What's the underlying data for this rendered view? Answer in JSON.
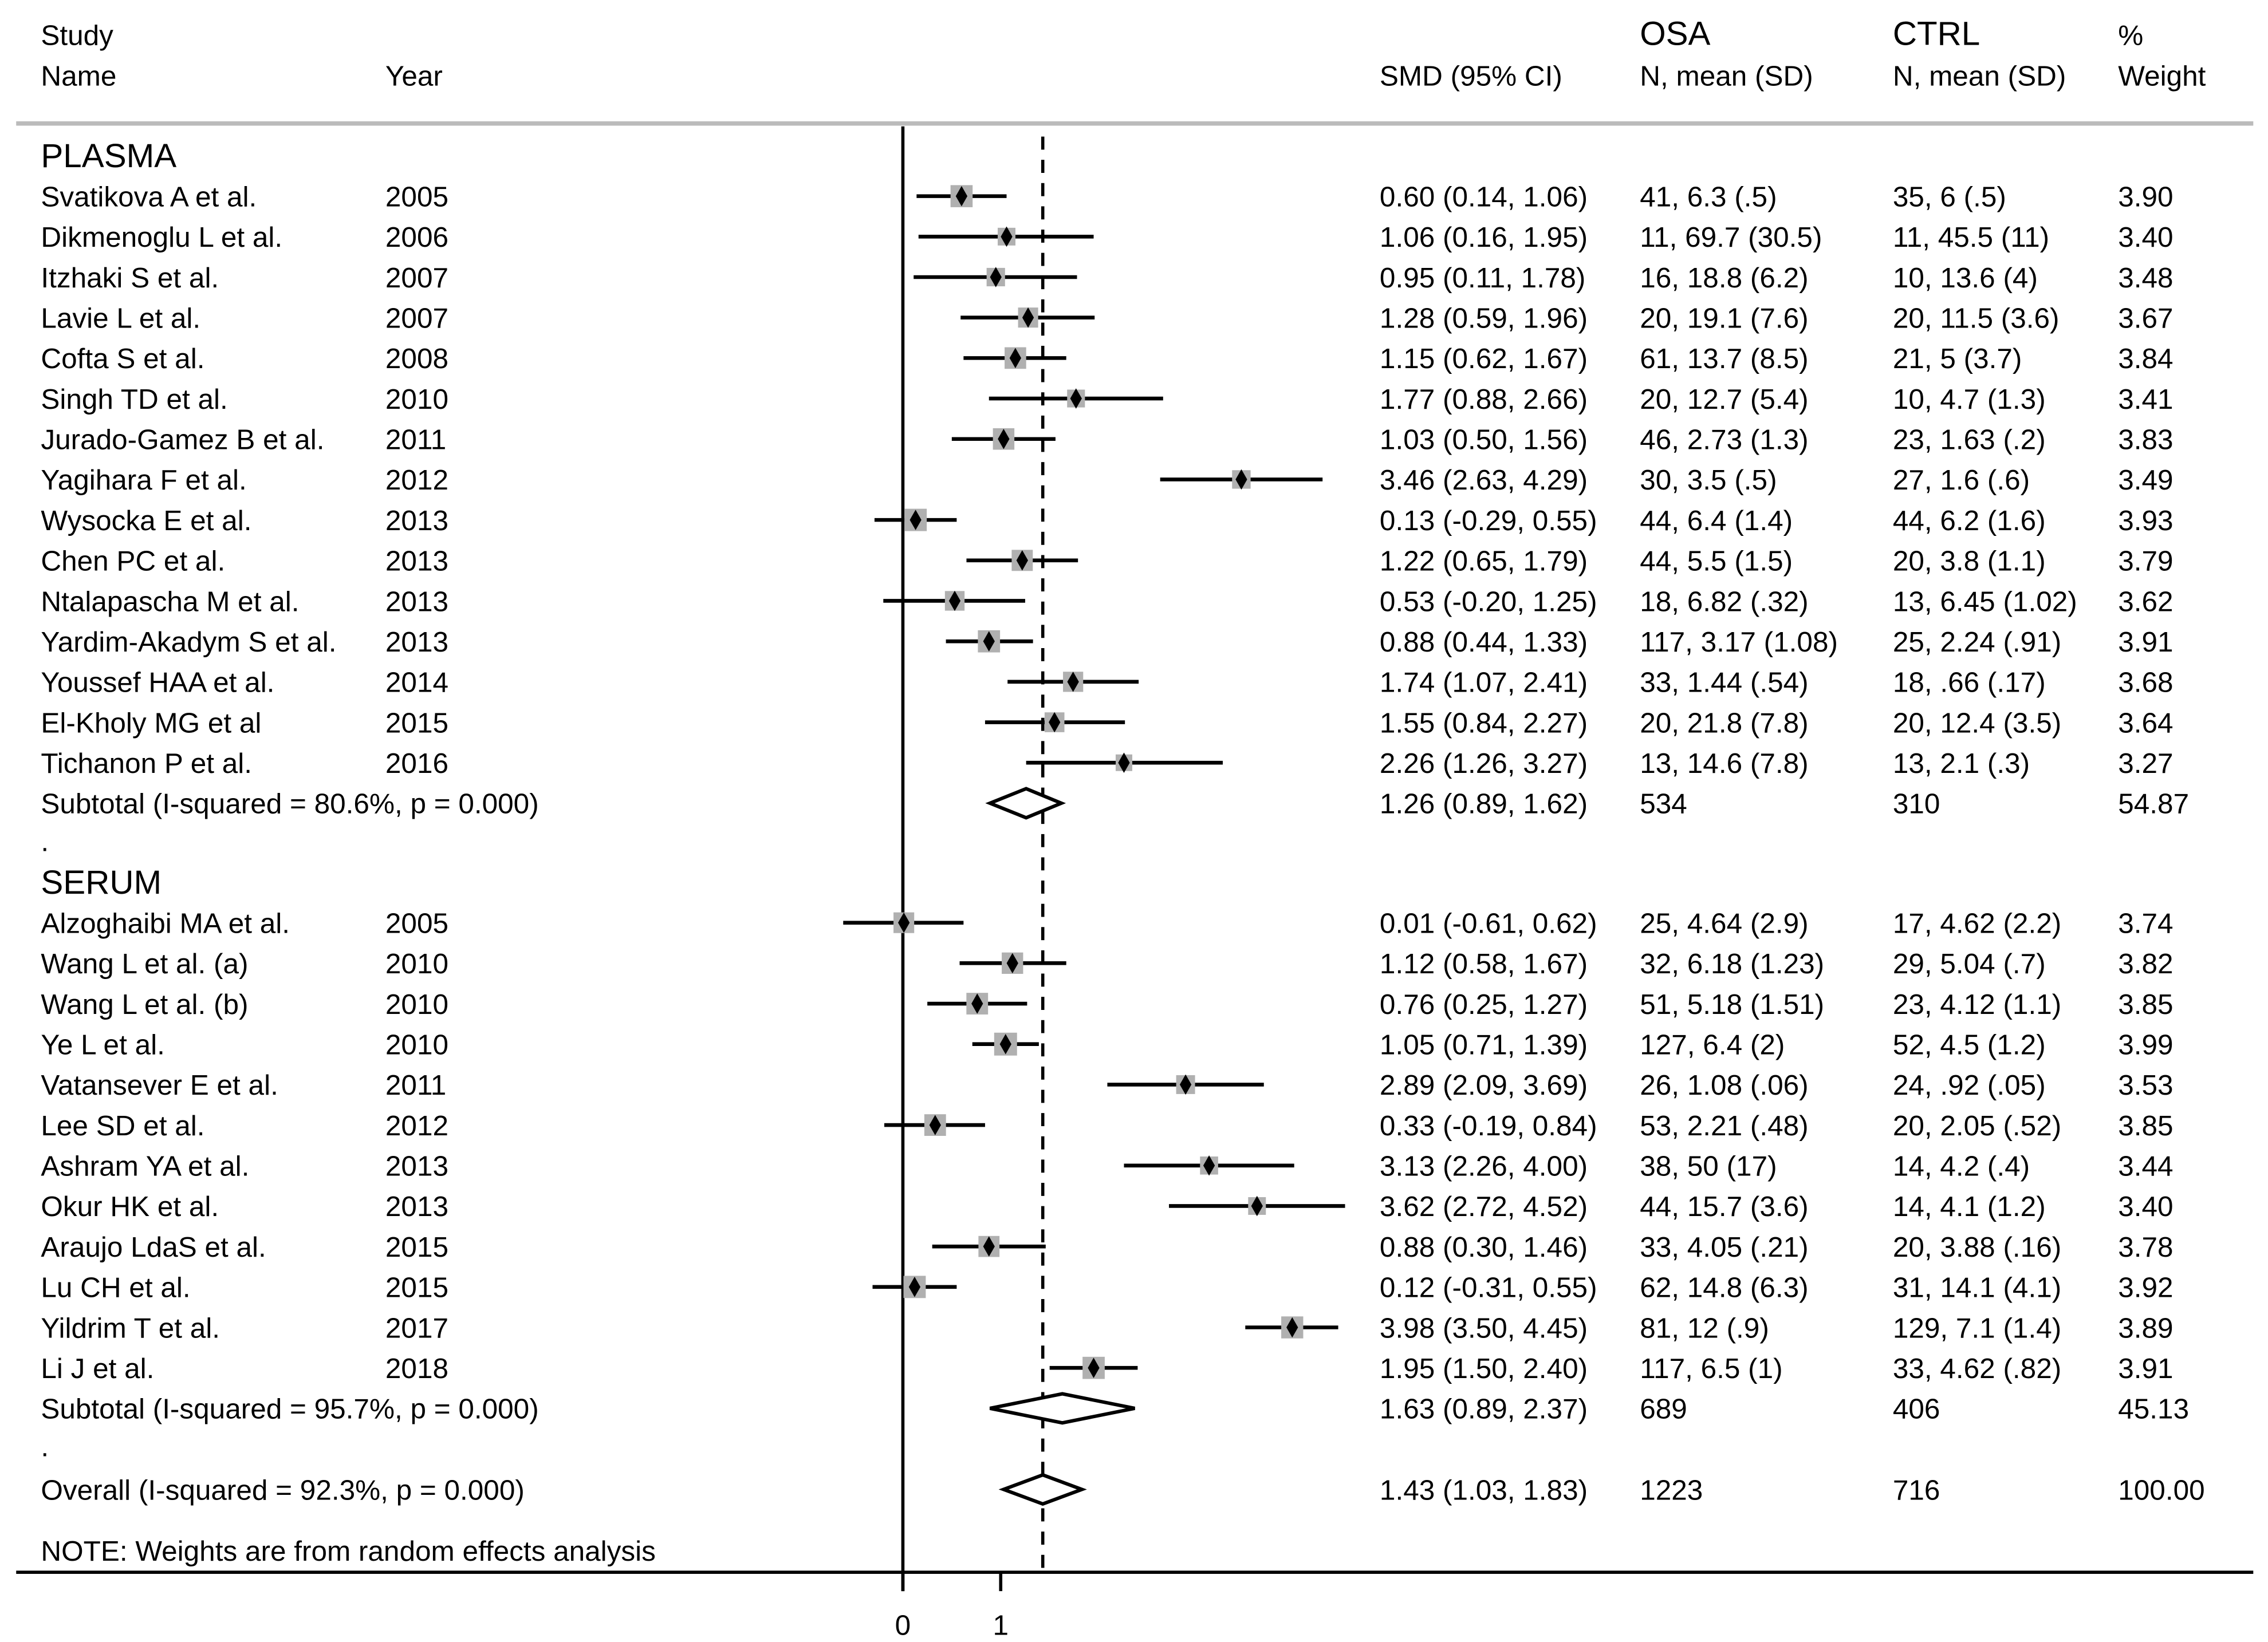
{
  "header": {
    "study_line1": "Study",
    "study_line2": "Name",
    "year": "Year",
    "smd": "SMD (95% CI)",
    "osa_line1": "OSA",
    "osa_line2": "N, mean (SD)",
    "ctrl_line1": "CTRL",
    "ctrl_line2": "N, mean (SD)",
    "weight_line1": "%",
    "weight_line2": "Weight"
  },
  "colors": {
    "marker_box": "#b0b0b0",
    "lines": "#000000",
    "header_rule": "#bbbbbb"
  },
  "chart_data": {
    "type": "forest",
    "xlabel": "",
    "x_ticks": [
      "0",
      "1"
    ],
    "null_line": 0,
    "overall_line": 1.43,
    "groups": [
      {
        "label": "PLASMA",
        "studies": [
          {
            "name": "Svatikova A et al.",
            "year": "2005",
            "smd": 0.6,
            "lo": 0.14,
            "hi": 1.06,
            "ci_text": "0.60 (0.14, 1.06)",
            "osa": "41, 6.3 (.5)",
            "ctrl": "35, 6 (.5)",
            "weight": "3.90"
          },
          {
            "name": "Dikmenoglu L et al.",
            "year": "2006",
            "smd": 1.06,
            "lo": 0.16,
            "hi": 1.95,
            "ci_text": "1.06 (0.16, 1.95)",
            "osa": "11, 69.7 (30.5)",
            "ctrl": "11, 45.5 (11)",
            "weight": "3.40"
          },
          {
            "name": "Itzhaki S et al.",
            "year": "2007",
            "smd": 0.95,
            "lo": 0.11,
            "hi": 1.78,
            "ci_text": "0.95 (0.11, 1.78)",
            "osa": "16, 18.8 (6.2)",
            "ctrl": "10, 13.6 (4)",
            "weight": "3.48"
          },
          {
            "name": "Lavie L et al.",
            "year": "2007",
            "smd": 1.28,
            "lo": 0.59,
            "hi": 1.96,
            "ci_text": "1.28 (0.59, 1.96)",
            "osa": "20, 19.1 (7.6)",
            "ctrl": "20, 11.5 (3.6)",
            "weight": "3.67"
          },
          {
            "name": "Cofta S et al.",
            "year": "2008",
            "smd": 1.15,
            "lo": 0.62,
            "hi": 1.67,
            "ci_text": "1.15 (0.62, 1.67)",
            "osa": "61, 13.7 (8.5)",
            "ctrl": "21, 5 (3.7)",
            "weight": "3.84"
          },
          {
            "name": "Singh TD et al.",
            "year": "2010",
            "smd": 1.77,
            "lo": 0.88,
            "hi": 2.66,
            "ci_text": "1.77 (0.88, 2.66)",
            "osa": "20, 12.7 (5.4)",
            "ctrl": "10, 4.7 (1.3)",
            "weight": "3.41"
          },
          {
            "name": "Jurado-Gamez B et al.",
            "year": "2011",
            "smd": 1.03,
            "lo": 0.5,
            "hi": 1.56,
            "ci_text": "1.03 (0.50, 1.56)",
            "osa": "46, 2.73 (1.3)",
            "ctrl": "23, 1.63 (.2)",
            "weight": "3.83"
          },
          {
            "name": "Yagihara F et al.",
            "year": "2012",
            "smd": 3.46,
            "lo": 2.63,
            "hi": 4.29,
            "ci_text": "3.46 (2.63, 4.29)",
            "osa": "30, 3.5 (.5)",
            "ctrl": "27, 1.6 (.6)",
            "weight": "3.49"
          },
          {
            "name": "Wysocka E et al.",
            "year": "2013",
            "smd": 0.13,
            "lo": -0.29,
            "hi": 0.55,
            "ci_text": "0.13 (-0.29, 0.55)",
            "osa": "44, 6.4 (1.4)",
            "ctrl": "44, 6.2 (1.6)",
            "weight": "3.93"
          },
          {
            "name": "Chen PC et al.",
            "year": "2013",
            "smd": 1.22,
            "lo": 0.65,
            "hi": 1.79,
            "ci_text": "1.22 (0.65, 1.79)",
            "osa": "44, 5.5 (1.5)",
            "ctrl": "20, 3.8 (1.1)",
            "weight": "3.79"
          },
          {
            "name": "Ntalapascha M et al.",
            "year": "2013",
            "smd": 0.53,
            "lo": -0.2,
            "hi": 1.25,
            "ci_text": "0.53 (-0.20, 1.25)",
            "osa": "18, 6.82 (.32)",
            "ctrl": "13, 6.45 (1.02)",
            "weight": "3.62"
          },
          {
            "name": "Yardim-Akadym S et al.",
            "year": "2013",
            "smd": 0.88,
            "lo": 0.44,
            "hi": 1.33,
            "ci_text": "0.88 (0.44, 1.33)",
            "osa": "117, 3.17 (1.08)",
            "ctrl": "25, 2.24 (.91)",
            "weight": "3.91"
          },
          {
            "name": "Youssef HAA et al.",
            "year": "2014",
            "smd": 1.74,
            "lo": 1.07,
            "hi": 2.41,
            "ci_text": "1.74 (1.07, 2.41)",
            "osa": "33, 1.44 (.54)",
            "ctrl": "18, .66 (.17)",
            "weight": "3.68"
          },
          {
            "name": "El-Kholy MG et al",
            "year": "2015",
            "smd": 1.55,
            "lo": 0.84,
            "hi": 2.27,
            "ci_text": "1.55 (0.84, 2.27)",
            "osa": "20, 21.8 (7.8)",
            "ctrl": "20, 12.4 (3.5)",
            "weight": "3.64"
          },
          {
            "name": "Tichanon P et al.",
            "year": "2016",
            "smd": 2.26,
            "lo": 1.26,
            "hi": 3.27,
            "ci_text": "2.26 (1.26, 3.27)",
            "osa": "13, 14.6 (7.8)",
            "ctrl": "13, 2.1 (.3)",
            "weight": "3.27"
          }
        ],
        "subtotal": {
          "label": "Subtotal  (I-squared = 80.6%, p = 0.000)",
          "smd": 1.26,
          "lo": 0.89,
          "hi": 1.62,
          "ci_text": "1.26 (0.89, 1.62)",
          "osa": "534",
          "ctrl": "310",
          "weight": "54.87"
        },
        "spacer": "."
      },
      {
        "label": "SERUM",
        "studies": [
          {
            "name": "Alzoghaibi MA et al.",
            "year": "2005",
            "smd": 0.01,
            "lo": -0.61,
            "hi": 0.62,
            "ci_text": "0.01 (-0.61, 0.62)",
            "osa": "25, 4.64 (2.9)",
            "ctrl": "17, 4.62 (2.2)",
            "weight": "3.74"
          },
          {
            "name": "Wang L et al. (a)",
            "year": "2010",
            "smd": 1.12,
            "lo": 0.58,
            "hi": 1.67,
            "ci_text": "1.12 (0.58, 1.67)",
            "osa": "32, 6.18 (1.23)",
            "ctrl": "29, 5.04 (.7)",
            "weight": "3.82"
          },
          {
            "name": "Wang L et al. (b)",
            "year": "2010",
            "smd": 0.76,
            "lo": 0.25,
            "hi": 1.27,
            "ci_text": "0.76 (0.25, 1.27)",
            "osa": "51, 5.18 (1.51)",
            "ctrl": "23, 4.12 (1.1)",
            "weight": "3.85"
          },
          {
            "name": "Ye L et al.",
            "year": "2010",
            "smd": 1.05,
            "lo": 0.71,
            "hi": 1.39,
            "ci_text": "1.05 (0.71, 1.39)",
            "osa": "127, 6.4 (2)",
            "ctrl": "52, 4.5 (1.2)",
            "weight": "3.99"
          },
          {
            "name": "Vatansever E et al.",
            "year": "2011",
            "smd": 2.89,
            "lo": 2.09,
            "hi": 3.69,
            "ci_text": "2.89 (2.09, 3.69)",
            "osa": "26, 1.08 (.06)",
            "ctrl": "24, .92 (.05)",
            "weight": "3.53"
          },
          {
            "name": "Lee  SD et al.",
            "year": "2012",
            "smd": 0.33,
            "lo": -0.19,
            "hi": 0.84,
            "ci_text": "0.33 (-0.19, 0.84)",
            "osa": "53, 2.21 (.48)",
            "ctrl": "20, 2.05 (.52)",
            "weight": "3.85"
          },
          {
            "name": "Ashram YA et al.",
            "year": "2013",
            "smd": 3.13,
            "lo": 2.26,
            "hi": 4.0,
            "ci_text": "3.13 (2.26, 4.00)",
            "osa": "38, 50 (17)",
            "ctrl": "14, 4.2 (.4)",
            "weight": "3.44"
          },
          {
            "name": "Okur HK et al.",
            "year": "2013",
            "smd": 3.62,
            "lo": 2.72,
            "hi": 4.52,
            "ci_text": "3.62 (2.72, 4.52)",
            "osa": "44, 15.7 (3.6)",
            "ctrl": "14, 4.1 (1.2)",
            "weight": "3.40"
          },
          {
            "name": "Araujo LdaS et al.",
            "year": "2015",
            "smd": 0.88,
            "lo": 0.3,
            "hi": 1.46,
            "ci_text": "0.88 (0.30, 1.46)",
            "osa": "33, 4.05 (.21)",
            "ctrl": "20, 3.88 (.16)",
            "weight": "3.78"
          },
          {
            "name": "Lu CH et al.",
            "year": "2015",
            "smd": 0.12,
            "lo": -0.31,
            "hi": 0.55,
            "ci_text": "0.12 (-0.31, 0.55)",
            "osa": "62, 14.8 (6.3)",
            "ctrl": "31, 14.1 (4.1)",
            "weight": "3.92"
          },
          {
            "name": "Yildrim T et al.",
            "year": "2017",
            "smd": 3.98,
            "lo": 3.5,
            "hi": 4.45,
            "ci_text": "3.98 (3.50, 4.45)",
            "osa": "81, 12 (.9)",
            "ctrl": "129, 7.1 (1.4)",
            "weight": "3.89"
          },
          {
            "name": "Li J et al.",
            "year": "2018",
            "smd": 1.95,
            "lo": 1.5,
            "hi": 2.4,
            "ci_text": "1.95 (1.50, 2.40)",
            "osa": "117, 6.5 (1)",
            "ctrl": "33, 4.62 (.82)",
            "weight": "3.91"
          }
        ],
        "subtotal": {
          "label": "Subtotal  (I-squared = 95.7%, p = 0.000)",
          "smd": 1.63,
          "lo": 0.89,
          "hi": 2.37,
          "ci_text": "1.63 (0.89, 2.37)",
          "osa": "689",
          "ctrl": "406",
          "weight": "45.13"
        },
        "spacer": "."
      }
    ],
    "overall": {
      "label": "Overall  (I-squared = 92.3%, p = 0.000)",
      "smd": 1.43,
      "lo": 1.03,
      "hi": 1.83,
      "ci_text": "1.43 (1.03, 1.83)",
      "osa": "1223",
      "ctrl": "716",
      "weight": "100.00"
    },
    "note": "NOTE: Weights are from random effects analysis"
  }
}
